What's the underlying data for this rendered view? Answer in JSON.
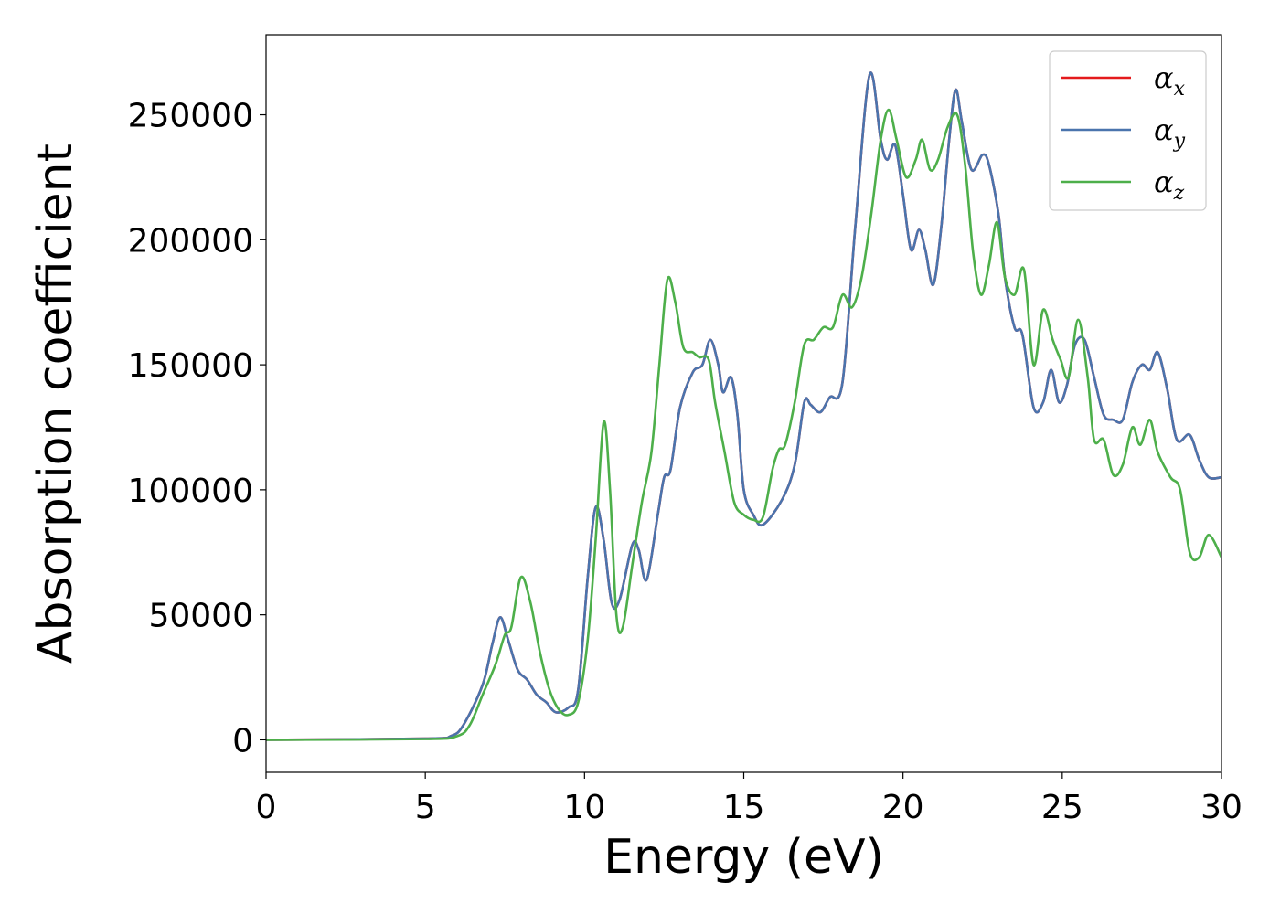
{
  "chart_data": {
    "type": "line",
    "title": "",
    "xlabel": "Energy (eV)",
    "ylabel": "Absorption coefficient",
    "xlim": [
      0,
      30
    ],
    "ylim": [
      -13000,
      282000
    ],
    "xticks": [
      0,
      5,
      10,
      15,
      20,
      25,
      30
    ],
    "yticks": [
      0,
      50000,
      100000,
      150000,
      200000,
      250000
    ],
    "grid": false,
    "legend_position": "top-right",
    "series": [
      {
        "name": "α",
        "subscript": "x",
        "color": "#e41a1c",
        "points": [
          [
            0,
            0
          ],
          [
            5,
            500
          ],
          [
            5.8,
            1500
          ],
          [
            6.2,
            6000
          ],
          [
            6.8,
            22000
          ],
          [
            7.1,
            38000
          ],
          [
            7.35,
            49000
          ],
          [
            7.6,
            40000
          ],
          [
            7.9,
            28000
          ],
          [
            8.2,
            24000
          ],
          [
            8.5,
            18000
          ],
          [
            8.8,
            15000
          ],
          [
            9.1,
            11000
          ],
          [
            9.5,
            13000
          ],
          [
            9.8,
            20000
          ],
          [
            10.1,
            65000
          ],
          [
            10.35,
            93000
          ],
          [
            10.6,
            80000
          ],
          [
            10.85,
            55000
          ],
          [
            11.1,
            56000
          ],
          [
            11.5,
            78000
          ],
          [
            11.7,
            76000
          ],
          [
            11.95,
            64000
          ],
          [
            12.3,
            90000
          ],
          [
            12.5,
            105000
          ],
          [
            12.7,
            108000
          ],
          [
            13.0,
            133000
          ],
          [
            13.4,
            147000
          ],
          [
            13.7,
            150000
          ],
          [
            13.95,
            160000
          ],
          [
            14.2,
            150000
          ],
          [
            14.35,
            139000
          ],
          [
            14.6,
            145000
          ],
          [
            14.8,
            130000
          ],
          [
            15.0,
            100000
          ],
          [
            15.3,
            90000
          ],
          [
            15.6,
            86000
          ],
          [
            16.2,
            96000
          ],
          [
            16.6,
            110000
          ],
          [
            16.9,
            135000
          ],
          [
            17.1,
            134000
          ],
          [
            17.4,
            131000
          ],
          [
            17.7,
            137000
          ],
          [
            18.1,
            143000
          ],
          [
            18.5,
            205000
          ],
          [
            18.95,
            266000
          ],
          [
            19.3,
            240000
          ],
          [
            19.5,
            232000
          ],
          [
            19.75,
            238000
          ],
          [
            20.0,
            218000
          ],
          [
            20.25,
            196000
          ],
          [
            20.5,
            204000
          ],
          [
            20.7,
            196000
          ],
          [
            20.95,
            182000
          ],
          [
            21.2,
            205000
          ],
          [
            21.45,
            240000
          ],
          [
            21.65,
            260000
          ],
          [
            21.85,
            247000
          ],
          [
            22.15,
            228000
          ],
          [
            22.5,
            234000
          ],
          [
            22.7,
            230000
          ],
          [
            23.0,
            210000
          ],
          [
            23.2,
            185000
          ],
          [
            23.5,
            165000
          ],
          [
            23.75,
            162000
          ],
          [
            24.1,
            133000
          ],
          [
            24.4,
            135000
          ],
          [
            24.65,
            148000
          ],
          [
            24.9,
            135000
          ],
          [
            25.15,
            142000
          ],
          [
            25.4,
            158000
          ],
          [
            25.7,
            160000
          ],
          [
            26.0,
            145000
          ],
          [
            26.3,
            130000
          ],
          [
            26.6,
            128000
          ],
          [
            26.9,
            128000
          ],
          [
            27.2,
            143000
          ],
          [
            27.5,
            150000
          ],
          [
            27.75,
            148000
          ],
          [
            28.0,
            155000
          ],
          [
            28.3,
            140000
          ],
          [
            28.6,
            120000
          ],
          [
            29.0,
            122000
          ],
          [
            29.3,
            112000
          ],
          [
            29.6,
            105000
          ],
          [
            30.0,
            105000
          ]
        ]
      },
      {
        "name": "α",
        "subscript": "y",
        "color": "#4a74ad",
        "points": [
          [
            0,
            0
          ],
          [
            5,
            500
          ],
          [
            5.8,
            1500
          ],
          [
            6.2,
            6000
          ],
          [
            6.8,
            22000
          ],
          [
            7.1,
            38000
          ],
          [
            7.35,
            49000
          ],
          [
            7.6,
            40000
          ],
          [
            7.9,
            28000
          ],
          [
            8.2,
            24000
          ],
          [
            8.5,
            18000
          ],
          [
            8.8,
            15000
          ],
          [
            9.1,
            11000
          ],
          [
            9.5,
            13000
          ],
          [
            9.8,
            20000
          ],
          [
            10.1,
            65000
          ],
          [
            10.35,
            93000
          ],
          [
            10.6,
            80000
          ],
          [
            10.85,
            55000
          ],
          [
            11.1,
            56000
          ],
          [
            11.5,
            78000
          ],
          [
            11.7,
            76000
          ],
          [
            11.95,
            64000
          ],
          [
            12.3,
            90000
          ],
          [
            12.5,
            105000
          ],
          [
            12.7,
            108000
          ],
          [
            13.0,
            133000
          ],
          [
            13.4,
            147000
          ],
          [
            13.7,
            150000
          ],
          [
            13.95,
            160000
          ],
          [
            14.2,
            150000
          ],
          [
            14.35,
            139000
          ],
          [
            14.6,
            145000
          ],
          [
            14.8,
            130000
          ],
          [
            15.0,
            100000
          ],
          [
            15.3,
            90000
          ],
          [
            15.6,
            86000
          ],
          [
            16.2,
            96000
          ],
          [
            16.6,
            110000
          ],
          [
            16.9,
            135000
          ],
          [
            17.1,
            134000
          ],
          [
            17.4,
            131000
          ],
          [
            17.7,
            137000
          ],
          [
            18.1,
            143000
          ],
          [
            18.5,
            205000
          ],
          [
            18.95,
            266000
          ],
          [
            19.3,
            240000
          ],
          [
            19.5,
            232000
          ],
          [
            19.75,
            238000
          ],
          [
            20.0,
            218000
          ],
          [
            20.25,
            196000
          ],
          [
            20.5,
            204000
          ],
          [
            20.7,
            196000
          ],
          [
            20.95,
            182000
          ],
          [
            21.2,
            205000
          ],
          [
            21.45,
            240000
          ],
          [
            21.65,
            260000
          ],
          [
            21.85,
            247000
          ],
          [
            22.15,
            228000
          ],
          [
            22.5,
            234000
          ],
          [
            22.7,
            230000
          ],
          [
            23.0,
            210000
          ],
          [
            23.2,
            185000
          ],
          [
            23.5,
            165000
          ],
          [
            23.75,
            162000
          ],
          [
            24.1,
            133000
          ],
          [
            24.4,
            135000
          ],
          [
            24.65,
            148000
          ],
          [
            24.9,
            135000
          ],
          [
            25.15,
            142000
          ],
          [
            25.4,
            158000
          ],
          [
            25.7,
            160000
          ],
          [
            26.0,
            145000
          ],
          [
            26.3,
            130000
          ],
          [
            26.6,
            128000
          ],
          [
            26.9,
            128000
          ],
          [
            27.2,
            143000
          ],
          [
            27.5,
            150000
          ],
          [
            27.75,
            148000
          ],
          [
            28.0,
            155000
          ],
          [
            28.3,
            140000
          ],
          [
            28.6,
            120000
          ],
          [
            29.0,
            122000
          ],
          [
            29.3,
            112000
          ],
          [
            29.6,
            105000
          ],
          [
            30.0,
            105000
          ]
        ]
      },
      {
        "name": "α",
        "subscript": "z",
        "color": "#4daf4a",
        "points": [
          [
            0,
            0
          ],
          [
            5,
            300
          ],
          [
            6.0,
            1500
          ],
          [
            6.4,
            6000
          ],
          [
            6.8,
            18000
          ],
          [
            7.2,
            30000
          ],
          [
            7.5,
            42000
          ],
          [
            7.7,
            45000
          ],
          [
            8.0,
            65000
          ],
          [
            8.3,
            55000
          ],
          [
            8.6,
            35000
          ],
          [
            8.9,
            20000
          ],
          [
            9.2,
            12000
          ],
          [
            9.5,
            10000
          ],
          [
            9.8,
            15000
          ],
          [
            10.1,
            40000
          ],
          [
            10.35,
            80000
          ],
          [
            10.6,
            127000
          ],
          [
            10.8,
            100000
          ],
          [
            11.0,
            50000
          ],
          [
            11.2,
            45000
          ],
          [
            11.5,
            70000
          ],
          [
            11.8,
            95000
          ],
          [
            12.1,
            115000
          ],
          [
            12.35,
            150000
          ],
          [
            12.6,
            184000
          ],
          [
            12.85,
            175000
          ],
          [
            13.1,
            157000
          ],
          [
            13.4,
            155000
          ],
          [
            13.6,
            153000
          ],
          [
            13.9,
            152000
          ],
          [
            14.1,
            135000
          ],
          [
            14.4,
            115000
          ],
          [
            14.7,
            95000
          ],
          [
            15.0,
            90000
          ],
          [
            15.3,
            88000
          ],
          [
            15.6,
            89000
          ],
          [
            15.9,
            108000
          ],
          [
            16.1,
            116000
          ],
          [
            16.3,
            118000
          ],
          [
            16.6,
            135000
          ],
          [
            16.9,
            158000
          ],
          [
            17.2,
            160000
          ],
          [
            17.5,
            165000
          ],
          [
            17.8,
            165000
          ],
          [
            18.1,
            178000
          ],
          [
            18.4,
            173000
          ],
          [
            18.7,
            185000
          ],
          [
            19.0,
            210000
          ],
          [
            19.3,
            240000
          ],
          [
            19.55,
            252000
          ],
          [
            19.8,
            240000
          ],
          [
            20.1,
            225000
          ],
          [
            20.4,
            232000
          ],
          [
            20.6,
            240000
          ],
          [
            20.85,
            228000
          ],
          [
            21.1,
            232000
          ],
          [
            21.4,
            245000
          ],
          [
            21.7,
            250000
          ],
          [
            21.95,
            230000
          ],
          [
            22.2,
            195000
          ],
          [
            22.45,
            178000
          ],
          [
            22.7,
            190000
          ],
          [
            22.95,
            207000
          ],
          [
            23.2,
            185000
          ],
          [
            23.5,
            178000
          ],
          [
            23.8,
            188000
          ],
          [
            24.1,
            150000
          ],
          [
            24.4,
            172000
          ],
          [
            24.7,
            160000
          ],
          [
            24.95,
            152000
          ],
          [
            25.2,
            145000
          ],
          [
            25.5,
            168000
          ],
          [
            25.8,
            145000
          ],
          [
            26.0,
            120000
          ],
          [
            26.3,
            120000
          ],
          [
            26.6,
            106000
          ],
          [
            26.9,
            110000
          ],
          [
            27.2,
            125000
          ],
          [
            27.45,
            118000
          ],
          [
            27.75,
            128000
          ],
          [
            28.0,
            115000
          ],
          [
            28.4,
            105000
          ],
          [
            28.7,
            100000
          ],
          [
            29.0,
            75000
          ],
          [
            29.3,
            73000
          ],
          [
            29.6,
            82000
          ],
          [
            30.0,
            73000
          ]
        ]
      }
    ]
  }
}
